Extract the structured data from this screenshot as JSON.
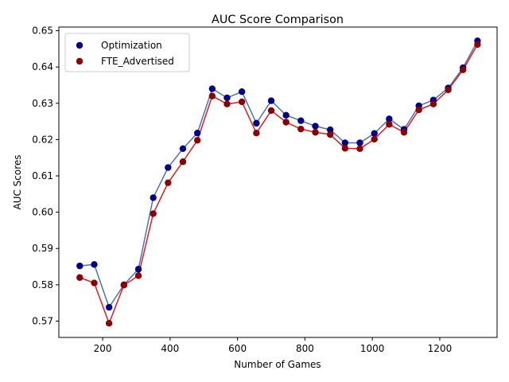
{
  "chart_data": {
    "type": "scatter",
    "title": "AUC Score Comparison",
    "xlabel": "Number of Games",
    "ylabel": "AUC Scores",
    "xlim": [
      70,
      1370
    ],
    "ylim": [
      0.5655,
      0.651
    ],
    "x_ticks": [
      200,
      400,
      600,
      800,
      1000,
      1200
    ],
    "y_ticks": [
      0.57,
      0.58,
      0.59,
      0.6,
      0.61,
      0.62,
      0.63,
      0.64,
      0.65
    ],
    "x_tick_labels": [
      "200",
      "400",
      "600",
      "800",
      "1000",
      "1200"
    ],
    "y_tick_labels": [
      "0.57",
      "0.58",
      "0.59",
      "0.60",
      "0.61",
      "0.62",
      "0.63",
      "0.64",
      "0.65"
    ],
    "legend_position": "top-left",
    "grid": false,
    "x": [
      132,
      175,
      219,
      263,
      306,
      350,
      394,
      438,
      481,
      525,
      569,
      613,
      656,
      700,
      744,
      788,
      831,
      875,
      919,
      963,
      1006,
      1050,
      1094,
      1138,
      1181,
      1225,
      1269,
      1312
    ],
    "series": [
      {
        "name": "Optimization",
        "marker_color": "#00008b",
        "line_color": "#4c72b0",
        "values": [
          0.5852,
          0.5856,
          0.5738,
          0.58,
          0.5843,
          0.604,
          0.6123,
          0.6175,
          0.6218,
          0.634,
          0.6315,
          0.6332,
          0.6245,
          0.6307,
          0.6267,
          0.6252,
          0.6237,
          0.6227,
          0.6191,
          0.6191,
          0.6217,
          0.6257,
          0.6228,
          0.6293,
          0.6309,
          0.6342,
          0.6398,
          0.6472
        ]
      },
      {
        "name": "FTE_Advertised",
        "marker_color": "#8b0000",
        "line_color": "#e31a1c",
        "values": [
          0.582,
          0.5805,
          0.5694,
          0.5799,
          0.5825,
          0.5996,
          0.6081,
          0.6139,
          0.6198,
          0.632,
          0.6298,
          0.6304,
          0.6218,
          0.628,
          0.6248,
          0.6229,
          0.622,
          0.6214,
          0.6176,
          0.6175,
          0.6201,
          0.6242,
          0.622,
          0.6282,
          0.6298,
          0.6337,
          0.6392,
          0.6462
        ]
      }
    ]
  }
}
